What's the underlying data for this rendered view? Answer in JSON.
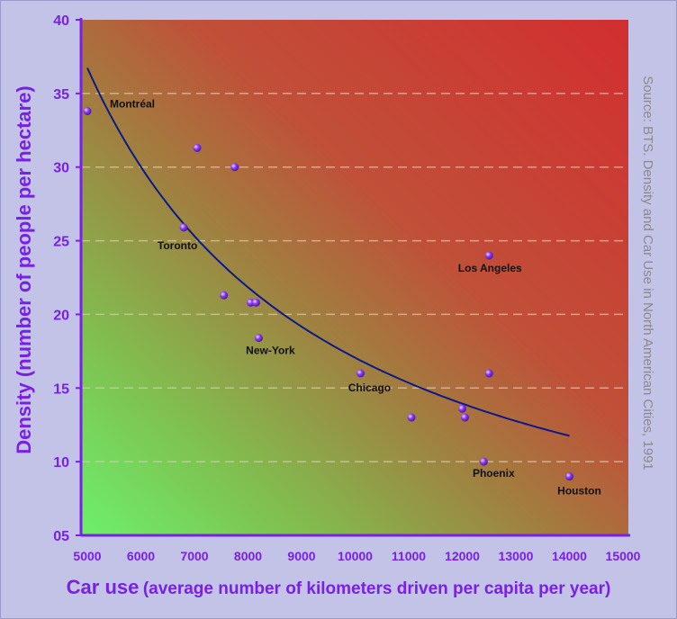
{
  "chart_data": {
    "type": "scatter",
    "title": "",
    "ylabel": "Density (number of people per hectare)",
    "xlabel_main": "Car use",
    "xlabel_sub": "(average number of kilometers driven per capita per year)",
    "source": "Source: BTS. Density and Car Use in North American Cities, 1991",
    "xlim": [
      5000,
      15000
    ],
    "ylim": [
      5,
      40
    ],
    "x_ticks": [
      "5000",
      "6000",
      "7000",
      "8000",
      "9000",
      "10000",
      "11000",
      "12000",
      "13000",
      "14000",
      "15000"
    ],
    "y_ticks": [
      "05",
      "10",
      "15",
      "20",
      "25",
      "30",
      "35",
      "40"
    ],
    "grid": "horizontal dashed",
    "points": [
      {
        "x": 5000,
        "y": 33.8,
        "label": "Montréal"
      },
      {
        "x": 7050,
        "y": 31.3,
        "label": ""
      },
      {
        "x": 7750,
        "y": 30.0,
        "label": ""
      },
      {
        "x": 6800,
        "y": 25.9,
        "label": "Toronto"
      },
      {
        "x": 7550,
        "y": 21.3,
        "label": ""
      },
      {
        "x": 8050,
        "y": 20.8,
        "label": ""
      },
      {
        "x": 8150,
        "y": 20.8,
        "label": ""
      },
      {
        "x": 8200,
        "y": 18.4,
        "label": "New-York"
      },
      {
        "x": 10100,
        "y": 16.0,
        "label": "Chicago"
      },
      {
        "x": 11050,
        "y": 13.0,
        "label": ""
      },
      {
        "x": 12000,
        "y": 13.6,
        "label": ""
      },
      {
        "x": 12050,
        "y": 13.0,
        "label": ""
      },
      {
        "x": 12500,
        "y": 24.0,
        "label": "Los Angeles"
      },
      {
        "x": 12500,
        "y": 16.0,
        "label": ""
      },
      {
        "x": 12400,
        "y": 10.0,
        "label": "Phoenix"
      },
      {
        "x": 14000,
        "y": 9.0,
        "label": "Houston"
      }
    ],
    "trend": {
      "type": "power-fit",
      "x": [
        5000,
        6000,
        7000,
        8000,
        9000,
        10000,
        11000,
        12000,
        13000,
        14000
      ],
      "y": [
        36.7,
        29.9,
        25.2,
        21.8,
        19.3,
        17.2,
        15.5,
        14.0,
        12.7,
        11.6
      ]
    },
    "colors": {
      "background": "#c3c3e8",
      "axis": "#7a20e6",
      "trend": "#0a1a8a",
      "point": "#7a2be0",
      "grid": "#d8c8b8",
      "gradient_low": "#6cf06c",
      "gradient_high": "#d83030"
    }
  }
}
